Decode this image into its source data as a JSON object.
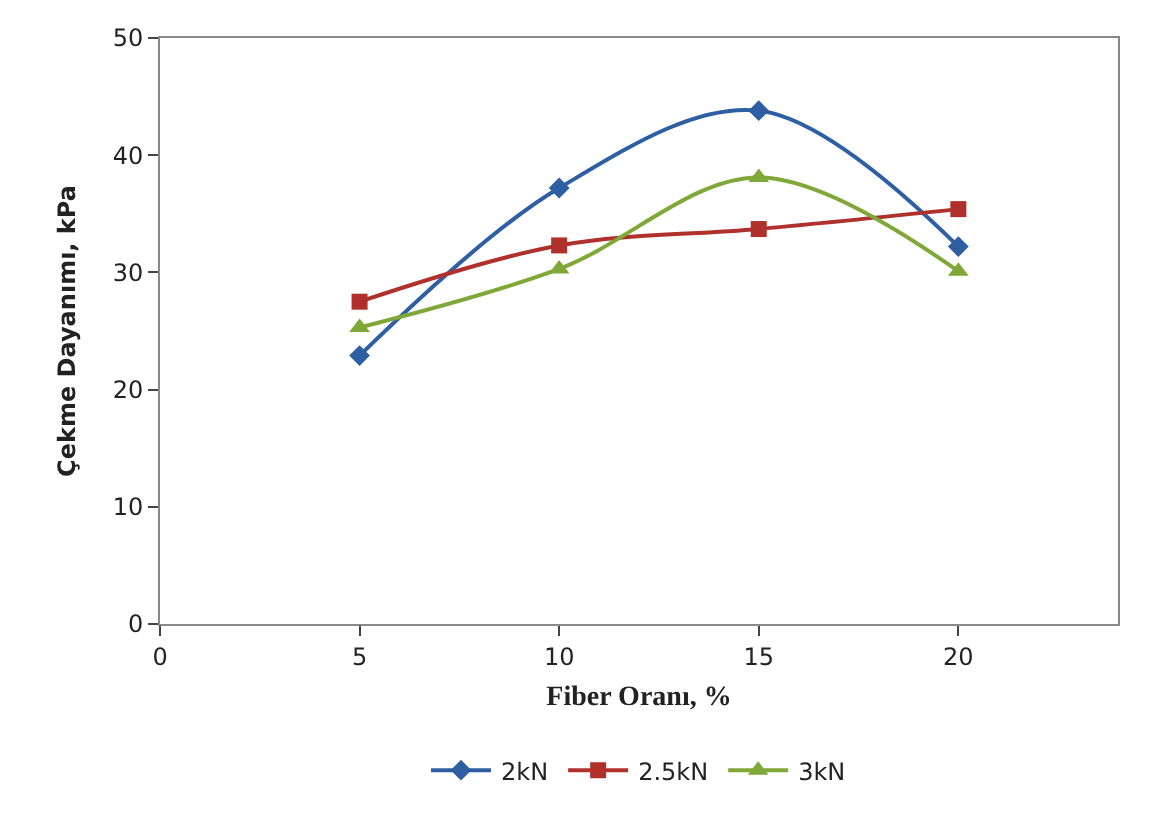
{
  "chart_data": {
    "type": "line",
    "xlabel": "Fiber Oranı, %",
    "ylabel": "Çekme Dayanımı, kPa",
    "x": [
      5,
      10,
      15,
      20
    ],
    "series": [
      {
        "name": "2kN",
        "color": "#2e5fa3",
        "marker": "diamond",
        "values": [
          22.9,
          37.2,
          43.8,
          32.2
        ]
      },
      {
        "name": "2.5kN",
        "color": "#b0302c",
        "marker": "square",
        "values": [
          27.5,
          32.3,
          33.7,
          35.4
        ]
      },
      {
        "name": "3kN",
        "color": "#7fa838",
        "marker": "triangle",
        "values": [
          25.3,
          30.3,
          38.1,
          30.1
        ]
      }
    ],
    "xlim": [
      0,
      24
    ],
    "xticks": [
      0,
      5,
      10,
      15,
      20
    ],
    "ylim": [
      0,
      50
    ],
    "yticks": [
      0,
      10,
      20,
      30,
      40,
      50
    ],
    "legend": "bottom",
    "line_style": "solid"
  }
}
